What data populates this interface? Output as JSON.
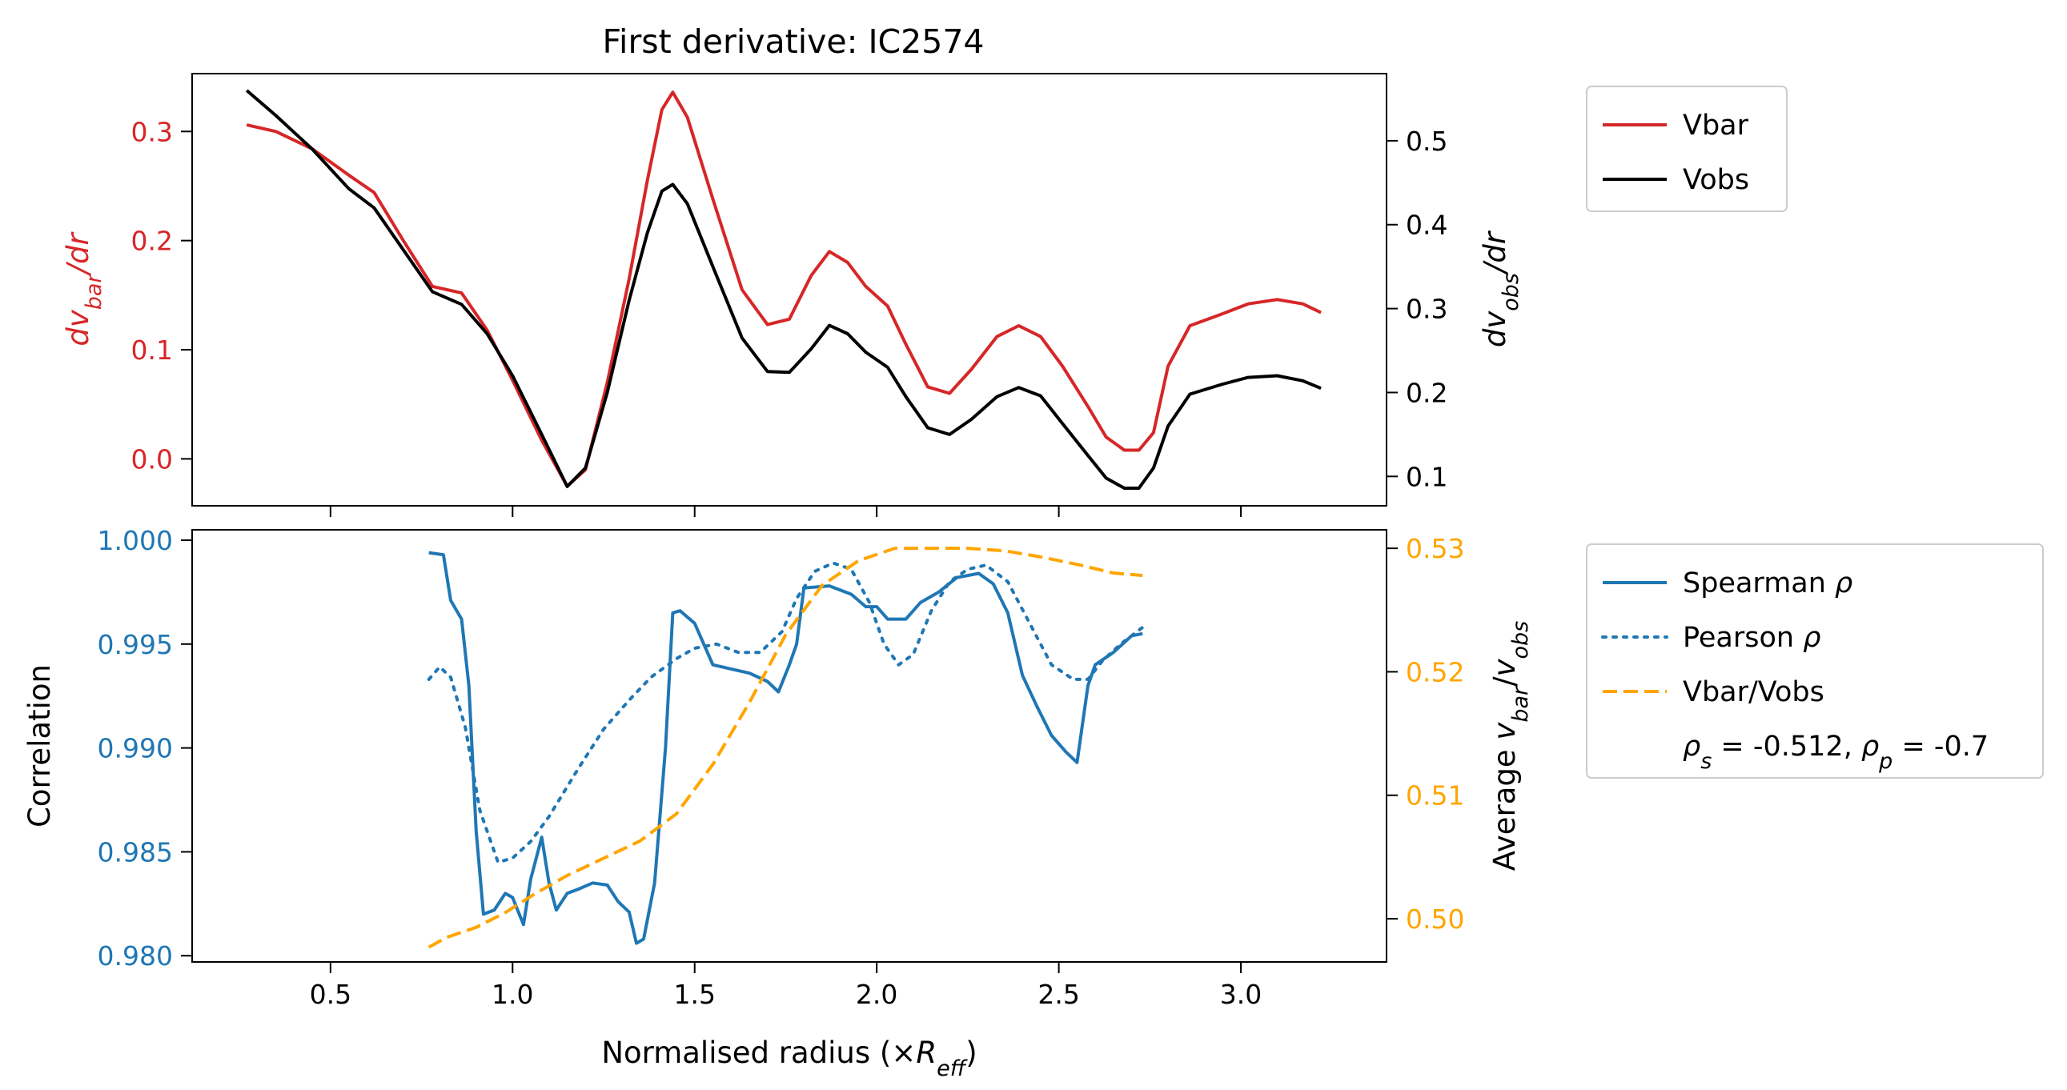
{
  "chart_data": [
    {
      "panel": "top",
      "type": "line",
      "title": "First derivative: IC2574",
      "x_range": [
        0.12,
        3.4
      ],
      "xticks": [
        0.5,
        1.0,
        1.5,
        2.0,
        2.5,
        3.0
      ],
      "xtick_labels_shown": false,
      "ylabel_left": "dv_bar/dr",
      "ylabel_right": "dv_obs/dr",
      "ylim_left": [
        -0.043,
        0.353
      ],
      "ylim_right": [
        0.065,
        0.58
      ],
      "yticks_left": [
        0.0,
        0.1,
        0.2,
        0.3
      ],
      "yticks_left_labels": [
        "0.0",
        "0.1",
        "0.2",
        "0.3"
      ],
      "yticks_right": [
        0.1,
        0.2,
        0.3,
        0.4,
        0.5
      ],
      "yticks_right_labels": [
        "0.1",
        "0.2",
        "0.3",
        "0.4",
        "0.5"
      ],
      "legend": {
        "placement": "outside-upper-right",
        "entries": [
          "Vbar",
          "Vobs"
        ]
      },
      "series": [
        {
          "name": "Vbar",
          "axis": "left",
          "color": "#d62728",
          "style": "solid",
          "points": [
            [
              0.27,
              0.306
            ],
            [
              0.35,
              0.3
            ],
            [
              0.45,
              0.284
            ],
            [
              0.55,
              0.26
            ],
            [
              0.62,
              0.244
            ],
            [
              0.7,
              0.2
            ],
            [
              0.78,
              0.158
            ],
            [
              0.86,
              0.152
            ],
            [
              0.93,
              0.118
            ],
            [
              1.0,
              0.072
            ],
            [
              1.08,
              0.017
            ],
            [
              1.15,
              -0.025
            ],
            [
              1.2,
              -0.01
            ],
            [
              1.26,
              0.07
            ],
            [
              1.32,
              0.165
            ],
            [
              1.37,
              0.255
            ],
            [
              1.41,
              0.32
            ],
            [
              1.44,
              0.336
            ],
            [
              1.48,
              0.313
            ],
            [
              1.55,
              0.238
            ],
            [
              1.63,
              0.155
            ],
            [
              1.7,
              0.123
            ],
            [
              1.76,
              0.128
            ],
            [
              1.82,
              0.168
            ],
            [
              1.87,
              0.19
            ],
            [
              1.92,
              0.18
            ],
            [
              1.97,
              0.158
            ],
            [
              2.03,
              0.14
            ],
            [
              2.08,
              0.105
            ],
            [
              2.14,
              0.066
            ],
            [
              2.2,
              0.06
            ],
            [
              2.26,
              0.082
            ],
            [
              2.33,
              0.112
            ],
            [
              2.39,
              0.122
            ],
            [
              2.45,
              0.112
            ],
            [
              2.51,
              0.085
            ],
            [
              2.58,
              0.048
            ],
            [
              2.63,
              0.02
            ],
            [
              2.68,
              0.008
            ],
            [
              2.72,
              0.008
            ],
            [
              2.76,
              0.024
            ],
            [
              2.8,
              0.085
            ],
            [
              2.86,
              0.122
            ],
            [
              2.95,
              0.133
            ],
            [
              3.02,
              0.142
            ],
            [
              3.1,
              0.146
            ],
            [
              3.17,
              0.142
            ],
            [
              3.22,
              0.134
            ]
          ]
        },
        {
          "name": "Vobs",
          "axis": "right",
          "color": "#000000",
          "style": "solid",
          "points": [
            [
              0.27,
              0.56
            ],
            [
              0.35,
              0.53
            ],
            [
              0.45,
              0.49
            ],
            [
              0.55,
              0.443
            ],
            [
              0.62,
              0.42
            ],
            [
              0.7,
              0.37
            ],
            [
              0.78,
              0.32
            ],
            [
              0.86,
              0.305
            ],
            [
              0.93,
              0.27
            ],
            [
              1.0,
              0.22
            ],
            [
              1.08,
              0.15
            ],
            [
              1.15,
              0.088
            ],
            [
              1.2,
              0.11
            ],
            [
              1.26,
              0.2
            ],
            [
              1.32,
              0.31
            ],
            [
              1.37,
              0.39
            ],
            [
              1.41,
              0.44
            ],
            [
              1.44,
              0.448
            ],
            [
              1.48,
              0.425
            ],
            [
              1.55,
              0.35
            ],
            [
              1.63,
              0.265
            ],
            [
              1.7,
              0.225
            ],
            [
              1.76,
              0.224
            ],
            [
              1.82,
              0.252
            ],
            [
              1.87,
              0.28
            ],
            [
              1.92,
              0.27
            ],
            [
              1.97,
              0.248
            ],
            [
              2.03,
              0.23
            ],
            [
              2.08,
              0.195
            ],
            [
              2.14,
              0.158
            ],
            [
              2.2,
              0.15
            ],
            [
              2.26,
              0.168
            ],
            [
              2.33,
              0.195
            ],
            [
              2.39,
              0.206
            ],
            [
              2.45,
              0.196
            ],
            [
              2.51,
              0.163
            ],
            [
              2.58,
              0.125
            ],
            [
              2.63,
              0.098
            ],
            [
              2.68,
              0.086
            ],
            [
              2.72,
              0.086
            ],
            [
              2.76,
              0.11
            ],
            [
              2.8,
              0.16
            ],
            [
              2.86,
              0.198
            ],
            [
              2.95,
              0.21
            ],
            [
              3.02,
              0.218
            ],
            [
              3.1,
              0.22
            ],
            [
              3.17,
              0.214
            ],
            [
              3.22,
              0.205
            ]
          ]
        }
      ]
    },
    {
      "panel": "bottom",
      "type": "line",
      "x_range": [
        0.12,
        3.4
      ],
      "xticks": [
        0.5,
        1.0,
        1.5,
        2.0,
        2.5,
        3.0
      ],
      "xtick_labels": [
        "0.5",
        "1.0",
        "1.5",
        "2.0",
        "2.5",
        "3.0"
      ],
      "xlabel": "Normalised radius (×R_eff)",
      "ylabel_left": "Correlation",
      "ylabel_right": "Average v_bar/v_obs",
      "ylim_left": [
        0.9797,
        1.0005
      ],
      "ylim_right": [
        0.4965,
        0.5315
      ],
      "yticks_left": [
        0.98,
        0.985,
        0.99,
        0.995,
        1.0
      ],
      "yticks_left_labels": [
        "0.980",
        "0.985",
        "0.990",
        "0.995",
        "1.000"
      ],
      "yticks_right": [
        0.5,
        0.51,
        0.52,
        0.53
      ],
      "yticks_right_labels": [
        "0.50",
        "0.51",
        "0.52",
        "0.53"
      ],
      "legend": {
        "placement": "outside-upper-right",
        "entries": [
          "Spearman ρ",
          "Pearson ρ",
          "Vbar/Vobs",
          "ρs = -0.512, ρp = -0.7"
        ]
      },
      "annotation": "ρs = -0.512, ρp = -0.7",
      "series": [
        {
          "name": "Spearman ρ",
          "axis": "left",
          "color": "#1f77b4",
          "style": "solid",
          "points": [
            [
              0.77,
              0.9994
            ],
            [
              0.81,
              0.9993
            ],
            [
              0.83,
              0.9971
            ],
            [
              0.86,
              0.9962
            ],
            [
              0.88,
              0.993
            ],
            [
              0.9,
              0.986
            ],
            [
              0.92,
              0.982
            ],
            [
              0.95,
              0.9822
            ],
            [
              0.98,
              0.983
            ],
            [
              1.0,
              0.9828
            ],
            [
              1.03,
              0.9815
            ],
            [
              1.05,
              0.9837
            ],
            [
              1.08,
              0.9857
            ],
            [
              1.1,
              0.9835
            ],
            [
              1.12,
              0.9822
            ],
            [
              1.15,
              0.983
            ],
            [
              1.18,
              0.9832
            ],
            [
              1.22,
              0.9835
            ],
            [
              1.26,
              0.9834
            ],
            [
              1.29,
              0.9826
            ],
            [
              1.32,
              0.9821
            ],
            [
              1.34,
              0.9806
            ],
            [
              1.36,
              0.9808
            ],
            [
              1.39,
              0.9835
            ],
            [
              1.42,
              0.99
            ],
            [
              1.44,
              0.9965
            ],
            [
              1.46,
              0.9966
            ],
            [
              1.5,
              0.996
            ],
            [
              1.52,
              0.9952
            ],
            [
              1.55,
              0.994
            ],
            [
              1.6,
              0.9938
            ],
            [
              1.65,
              0.9936
            ],
            [
              1.7,
              0.9932
            ],
            [
              1.73,
              0.9927
            ],
            [
              1.76,
              0.994
            ],
            [
              1.78,
              0.995
            ],
            [
              1.8,
              0.9977
            ],
            [
              1.87,
              0.9978
            ],
            [
              1.93,
              0.9974
            ],
            [
              1.97,
              0.9968
            ],
            [
              2.0,
              0.9968
            ],
            [
              2.03,
              0.9962
            ],
            [
              2.08,
              0.9962
            ],
            [
              2.12,
              0.997
            ],
            [
              2.17,
              0.9975
            ],
            [
              2.22,
              0.9982
            ],
            [
              2.28,
              0.9984
            ],
            [
              2.32,
              0.9979
            ],
            [
              2.36,
              0.9965
            ],
            [
              2.4,
              0.9935
            ],
            [
              2.44,
              0.992
            ],
            [
              2.48,
              0.9906
            ],
            [
              2.52,
              0.9898
            ],
            [
              2.55,
              0.9893
            ],
            [
              2.58,
              0.993
            ],
            [
              2.6,
              0.994
            ],
            [
              2.65,
              0.9946
            ],
            [
              2.7,
              0.9954
            ],
            [
              2.73,
              0.9955
            ]
          ]
        },
        {
          "name": "Pearson ρ",
          "axis": "left",
          "color": "#1f77b4",
          "style": "dotted",
          "points": [
            [
              0.77,
              0.9933
            ],
            [
              0.8,
              0.9939
            ],
            [
              0.83,
              0.9934
            ],
            [
              0.87,
              0.991
            ],
            [
              0.91,
              0.987
            ],
            [
              0.96,
              0.9845
            ],
            [
              1.0,
              0.9847
            ],
            [
              1.05,
              0.9855
            ],
            [
              1.1,
              0.9867
            ],
            [
              1.18,
              0.989
            ],
            [
              1.25,
              0.9909
            ],
            [
              1.32,
              0.9923
            ],
            [
              1.38,
              0.9934
            ],
            [
              1.45,
              0.9943
            ],
            [
              1.5,
              0.9948
            ],
            [
              1.56,
              0.995
            ],
            [
              1.62,
              0.9946
            ],
            [
              1.68,
              0.9946
            ],
            [
              1.74,
              0.9956
            ],
            [
              1.78,
              0.9972
            ],
            [
              1.83,
              0.9985
            ],
            [
              1.88,
              0.9989
            ],
            [
              1.93,
              0.9986
            ],
            [
              1.98,
              0.997
            ],
            [
              2.02,
              0.995
            ],
            [
              2.06,
              0.994
            ],
            [
              2.1,
              0.9945
            ],
            [
              2.15,
              0.9966
            ],
            [
              2.2,
              0.998
            ],
            [
              2.25,
              0.9986
            ],
            [
              2.3,
              0.9988
            ],
            [
              2.36,
              0.998
            ],
            [
              2.42,
              0.996
            ],
            [
              2.48,
              0.994
            ],
            [
              2.54,
              0.9933
            ],
            [
              2.58,
              0.9933
            ],
            [
              2.62,
              0.9942
            ],
            [
              2.67,
              0.995
            ],
            [
              2.73,
              0.9958
            ]
          ]
        },
        {
          "name": "Vbar/Vobs",
          "axis": "right",
          "color": "#ffa500",
          "style": "dashed",
          "points": [
            [
              0.77,
              0.4977
            ],
            [
              0.82,
              0.4985
            ],
            [
              0.9,
              0.4993
            ],
            [
              0.98,
              0.5005
            ],
            [
              1.06,
              0.502
            ],
            [
              1.15,
              0.5035
            ],
            [
              1.25,
              0.5049
            ],
            [
              1.35,
              0.5063
            ],
            [
              1.45,
              0.5085
            ],
            [
              1.55,
              0.5125
            ],
            [
              1.65,
              0.5175
            ],
            [
              1.75,
              0.523
            ],
            [
              1.85,
              0.527
            ],
            [
              1.95,
              0.529
            ],
            [
              2.05,
              0.53
            ],
            [
              2.15,
              0.53
            ],
            [
              2.25,
              0.53
            ],
            [
              2.35,
              0.5298
            ],
            [
              2.45,
              0.5293
            ],
            [
              2.55,
              0.5287
            ],
            [
              2.65,
              0.528
            ],
            [
              2.73,
              0.5278
            ]
          ]
        }
      ]
    }
  ]
}
